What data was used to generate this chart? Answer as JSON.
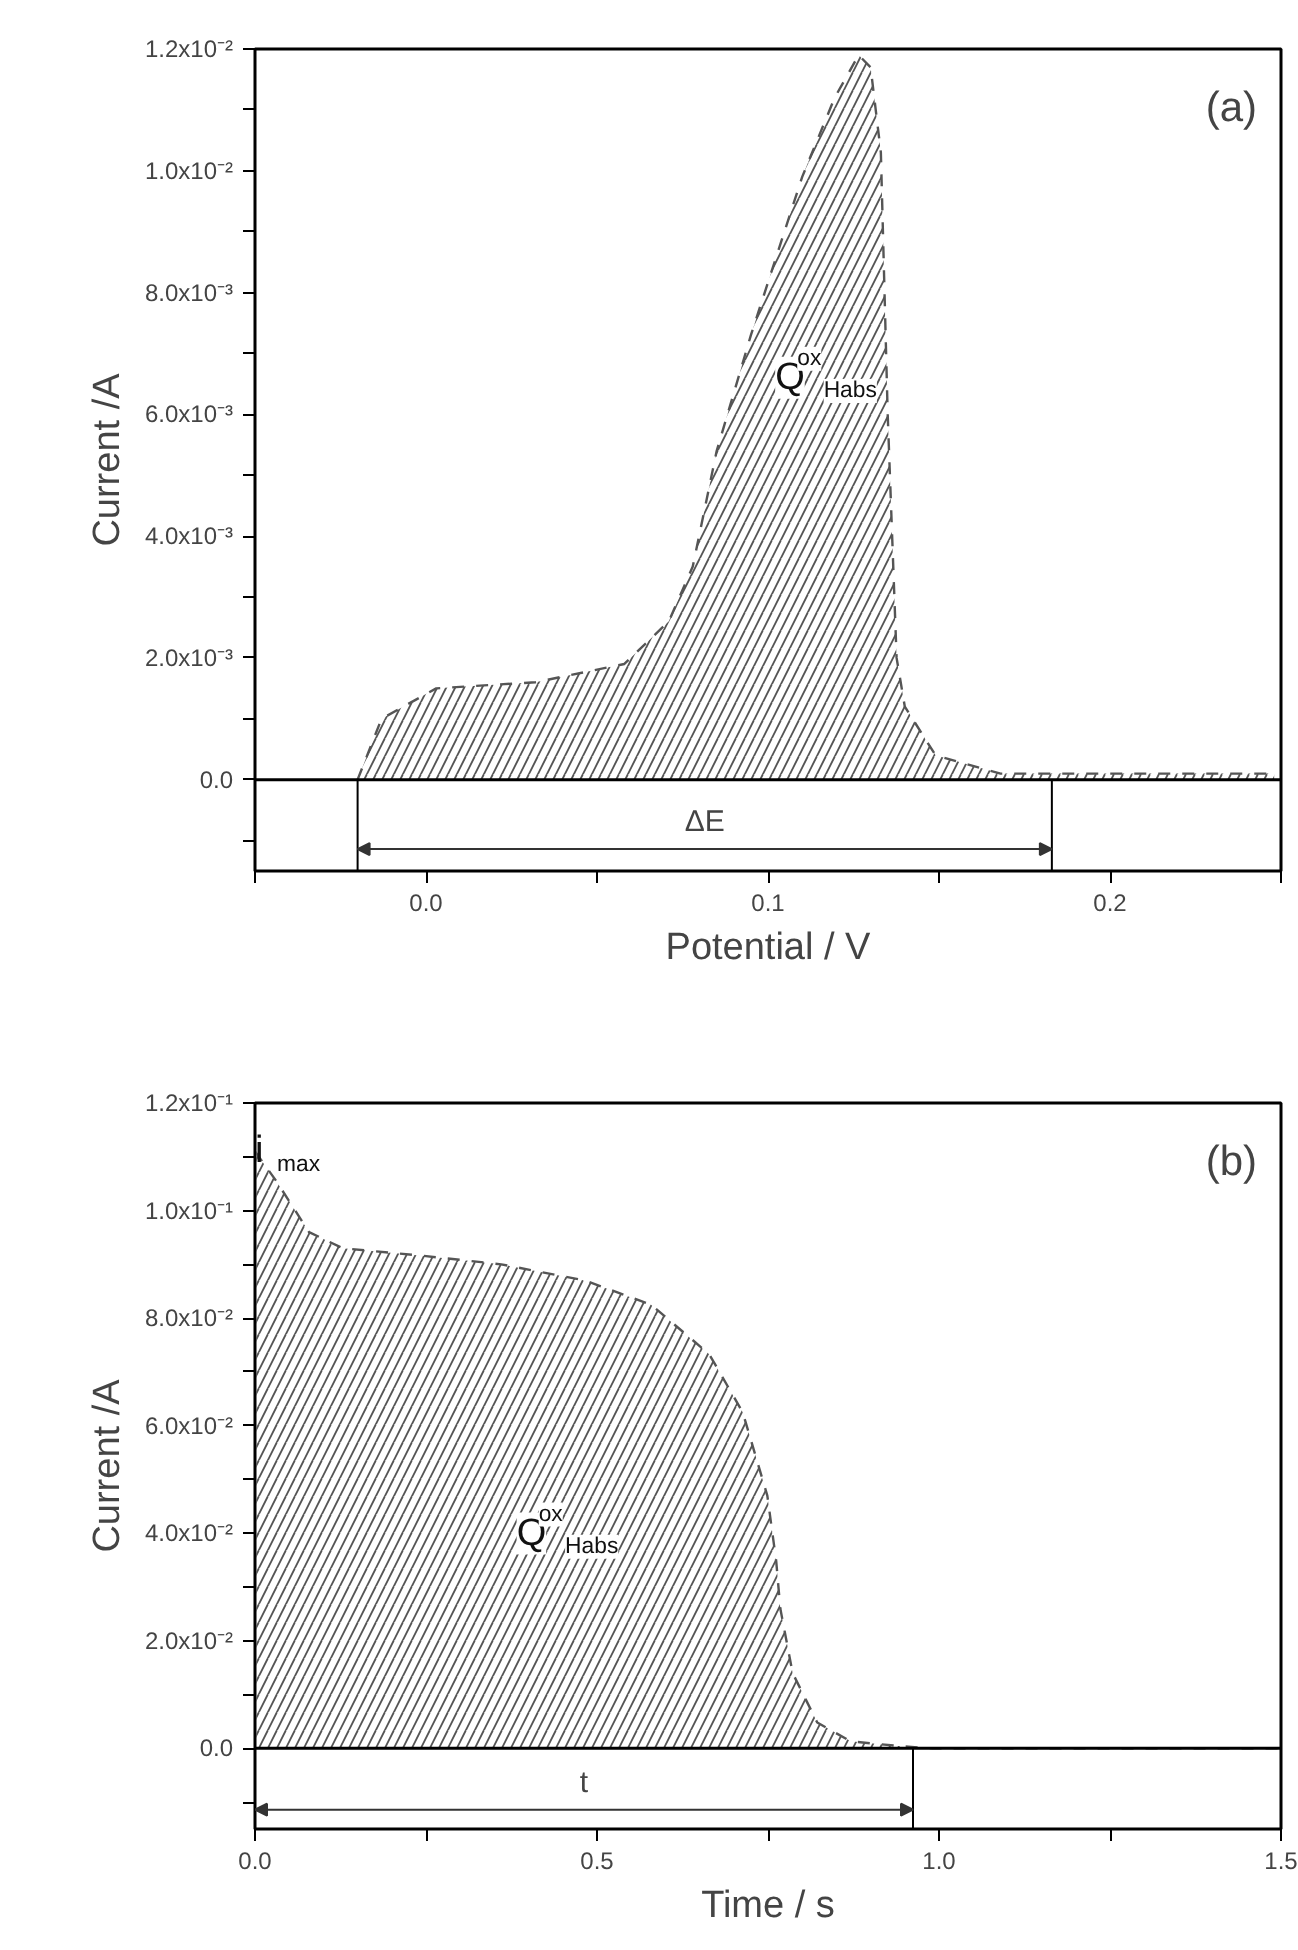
{
  "chart_data": [
    {
      "type": "area",
      "xlabel": "Potential / V",
      "ylabel": "Current /A",
      "annotations": [
        "(a)",
        "ΔE",
        "Q$^{ox}$$_{Habs}$"
      ],
      "x": [
        -0.02,
        -0.013,
        0.003,
        0.032,
        0.058,
        0.071,
        0.078,
        0.085,
        0.095,
        0.11,
        0.1195,
        0.1265,
        0.13,
        0.133,
        0.135,
        0.1376,
        0.14,
        0.149,
        0.168,
        0.183,
        0.248
      ],
      "series": [
        {
          "color": "#555555",
          "values": [
            0.0,
            0.001,
            0.0015,
            0.0016,
            0.0019,
            0.0026,
            0.0035,
            0.0054,
            0.0073,
            0.0099,
            0.0112,
            0.0119,
            0.0117,
            0.0103,
            0.006,
            0.002,
            0.0012,
            0.0004,
            0.0001,
            0.0001,
            0.0001
          ]
        }
      ],
      "line_style": "dashed",
      "grid": false,
      "xlim": [
        -0.05,
        0.25
      ],
      "ylim": [
        -0.0015,
        0.012
      ],
      "xticks": [
        {
          "value": -0.05,
          "label": null
        },
        {
          "value": 0,
          "label": "0.0"
        },
        {
          "value": 0.05,
          "label": null
        },
        0.1,
        {
          "value": 0.15,
          "label": null
        },
        0.2,
        {
          "value": 0.25,
          "label": null
        }
      ],
      "yticks": [
        {
          "value": -0.001,
          "label": null
        },
        {
          "value": 0,
          "label": "0.0"
        },
        {
          "value": 0.001,
          "label": null
        },
        {
          "value": 0.002,
          "label": "2.0x10⁻³"
        },
        {
          "value": 0.003,
          "label": null
        },
        {
          "value": 0.004,
          "label": "4.0x10⁻³"
        },
        {
          "value": 0.005,
          "label": null
        },
        {
          "value": 0.006,
          "label": "6.0x10⁻³"
        },
        {
          "value": 0.007,
          "label": null
        },
        {
          "value": 0.008,
          "label": "8.0x10⁻³"
        },
        {
          "value": 0.009,
          "label": null
        },
        {
          "value": 0.01,
          "label": "1.0x10⁻²"
        },
        {
          "value": 0.011,
          "label": null
        },
        {
          "value": 0.012,
          "label": "1.2x10⁻²"
        }
      ],
      "ref_lines": [
        {
          "axis": "y",
          "value": 0
        },
        {
          "axis": "x",
          "value": -0.02
        },
        {
          "axis": "x",
          "value": 0.183
        }
      ]
    },
    {
      "type": "area",
      "xlabel": "Time / s",
      "ylabel": "Current /A",
      "annotations": [
        "(b)",
        "t",
        "Q$^{ox}$$_{Habs}$",
        {
          "text": "i$_{max}$",
          "x": 0.0,
          "y": 0.111
        }
      ],
      "x": [
        0.0,
        0.031,
        0.079,
        0.128,
        0.237,
        0.36,
        0.482,
        0.579,
        0.664,
        0.713,
        0.749,
        0.762,
        0.768,
        0.786,
        0.822,
        0.871,
        0.944,
        0.99,
        1.5
      ],
      "series": [
        {
          "color": "#555555",
          "values": [
            0.111,
            0.1055,
            0.096,
            0.093,
            0.0917,
            0.09,
            0.087,
            0.0825,
            0.0733,
            0.0625,
            0.047,
            0.0348,
            0.026,
            0.014,
            0.0048,
            0.0013,
            0.0004,
            0.0,
            0.0
          ]
        }
      ],
      "line_style": "dashed",
      "grid": false,
      "xlim": [
        0,
        1.5
      ],
      "ylim": [
        -0.015,
        0.12
      ],
      "xticks": [
        {
          "value": 0,
          "label": "0.0"
        },
        {
          "value": 0.25,
          "label": null
        },
        0.5,
        {
          "value": 0.75,
          "label": null
        },
        {
          "value": 1,
          "label": "1.0"
        },
        {
          "value": 1.25,
          "label": null
        },
        1.5
      ],
      "yticks": [
        {
          "value": -0.01,
          "label": null
        },
        {
          "value": 0,
          "label": "0.0"
        },
        {
          "value": 0.01,
          "label": null
        },
        {
          "value": 0.02,
          "label": "2.0x10⁻²"
        },
        {
          "value": 0.03,
          "label": null
        },
        {
          "value": 0.04,
          "label": "4.0x10⁻²"
        },
        {
          "value": 0.05,
          "label": null
        },
        {
          "value": 0.06,
          "label": "6.0x10⁻²"
        },
        {
          "value": 0.07,
          "label": null
        },
        {
          "value": 0.08,
          "label": "8.0x10⁻²"
        },
        {
          "value": 0.09,
          "label": null
        },
        {
          "value": 0.1,
          "label": "1.0x10⁻¹"
        },
        {
          "value": 0.11,
          "label": null
        },
        {
          "value": 0.12,
          "label": "1.2x10⁻¹"
        }
      ],
      "ref_lines": [
        {
          "axis": "y",
          "value": 0
        },
        {
          "axis": "x",
          "value": 0.962
        }
      ]
    }
  ]
}
